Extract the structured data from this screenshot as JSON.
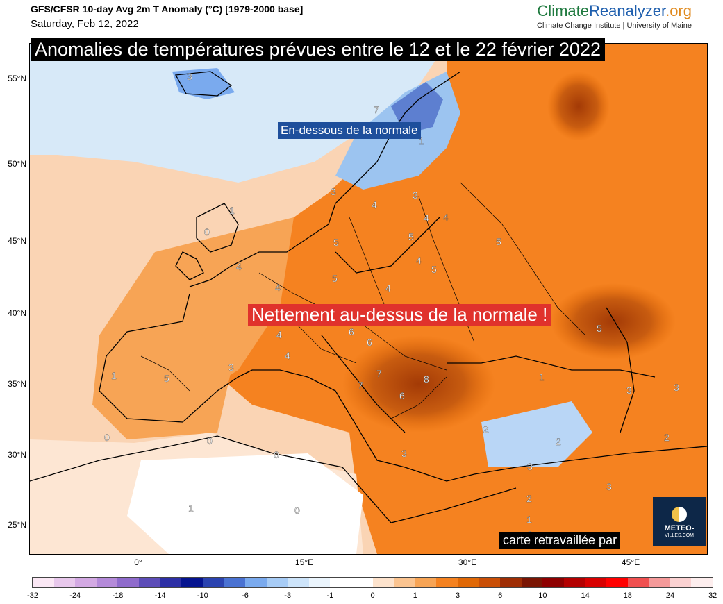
{
  "header": {
    "title": "GFS/CFSR 10-day Avg 2m T Anomaly (°C) [1979-2000 base]",
    "date": "Saturday, Feb 12, 2022"
  },
  "brand": {
    "part1": "Climate",
    "part2": "Reanalyzer",
    "part3": ".org",
    "subtitle": "Climate Change Institute | University of Maine"
  },
  "overlay": {
    "banner": "Anomalies de températures prévues entre le 12 et le 22 février 2022",
    "below_label": "En-dessous de la normale",
    "above_label": "Nettement au-dessus de la normale !",
    "credit": "carte retravaillée par",
    "logo_line1": "METEO-",
    "logo_line2": "VILLES.COM"
  },
  "axes": {
    "lat_labels": [
      "55°N",
      "50°N",
      "45°N",
      "40°N",
      "35°N",
      "30°N",
      "25°N"
    ],
    "lon_labels": [
      "0°",
      "15°E",
      "30°E",
      "45°E"
    ]
  },
  "colorbar": {
    "labels": [
      "-32",
      "-24",
      "-18",
      "-14",
      "-10",
      "-6",
      "-3",
      "-1",
      "0",
      "1",
      "3",
      "6",
      "10",
      "14",
      "18",
      "24",
      "32"
    ],
    "colors": [
      "#fbe8f5",
      "#e8c8ec",
      "#d3a9e3",
      "#b48ad9",
      "#8f6bcc",
      "#5d4db8",
      "#2d2fa5",
      "#06148f",
      "#2b43b0",
      "#4a72d2",
      "#7aaaee",
      "#a7ccf6",
      "#cde4fa",
      "#ebf5fd",
      "#ffffff",
      "#ffffff",
      "#fde3cd",
      "#fbc490",
      "#f7a455",
      "#f58220",
      "#e06806",
      "#c94e06",
      "#9e2d04",
      "#7a1503",
      "#8e0000",
      "#b30000",
      "#d80000",
      "#ff0000",
      "#f05050",
      "#f59a9a",
      "#fbd2d2",
      "#fdeeee"
    ]
  },
  "contour_labels": [
    "3",
    "7",
    "1",
    "1",
    "0",
    "3",
    "4",
    "3",
    "4",
    "4",
    "5",
    "4",
    "5",
    "5",
    "4",
    "5",
    "4",
    "4",
    "5",
    "6",
    "6",
    "6",
    "4",
    "4",
    "3",
    "1",
    "5",
    "7",
    "5",
    "7",
    "8",
    "6",
    "1",
    "3",
    "3",
    "2",
    "2",
    "2",
    "0",
    "0",
    "0",
    "3",
    "1",
    "0",
    "3",
    "3",
    "2",
    "1",
    "3"
  ]
}
